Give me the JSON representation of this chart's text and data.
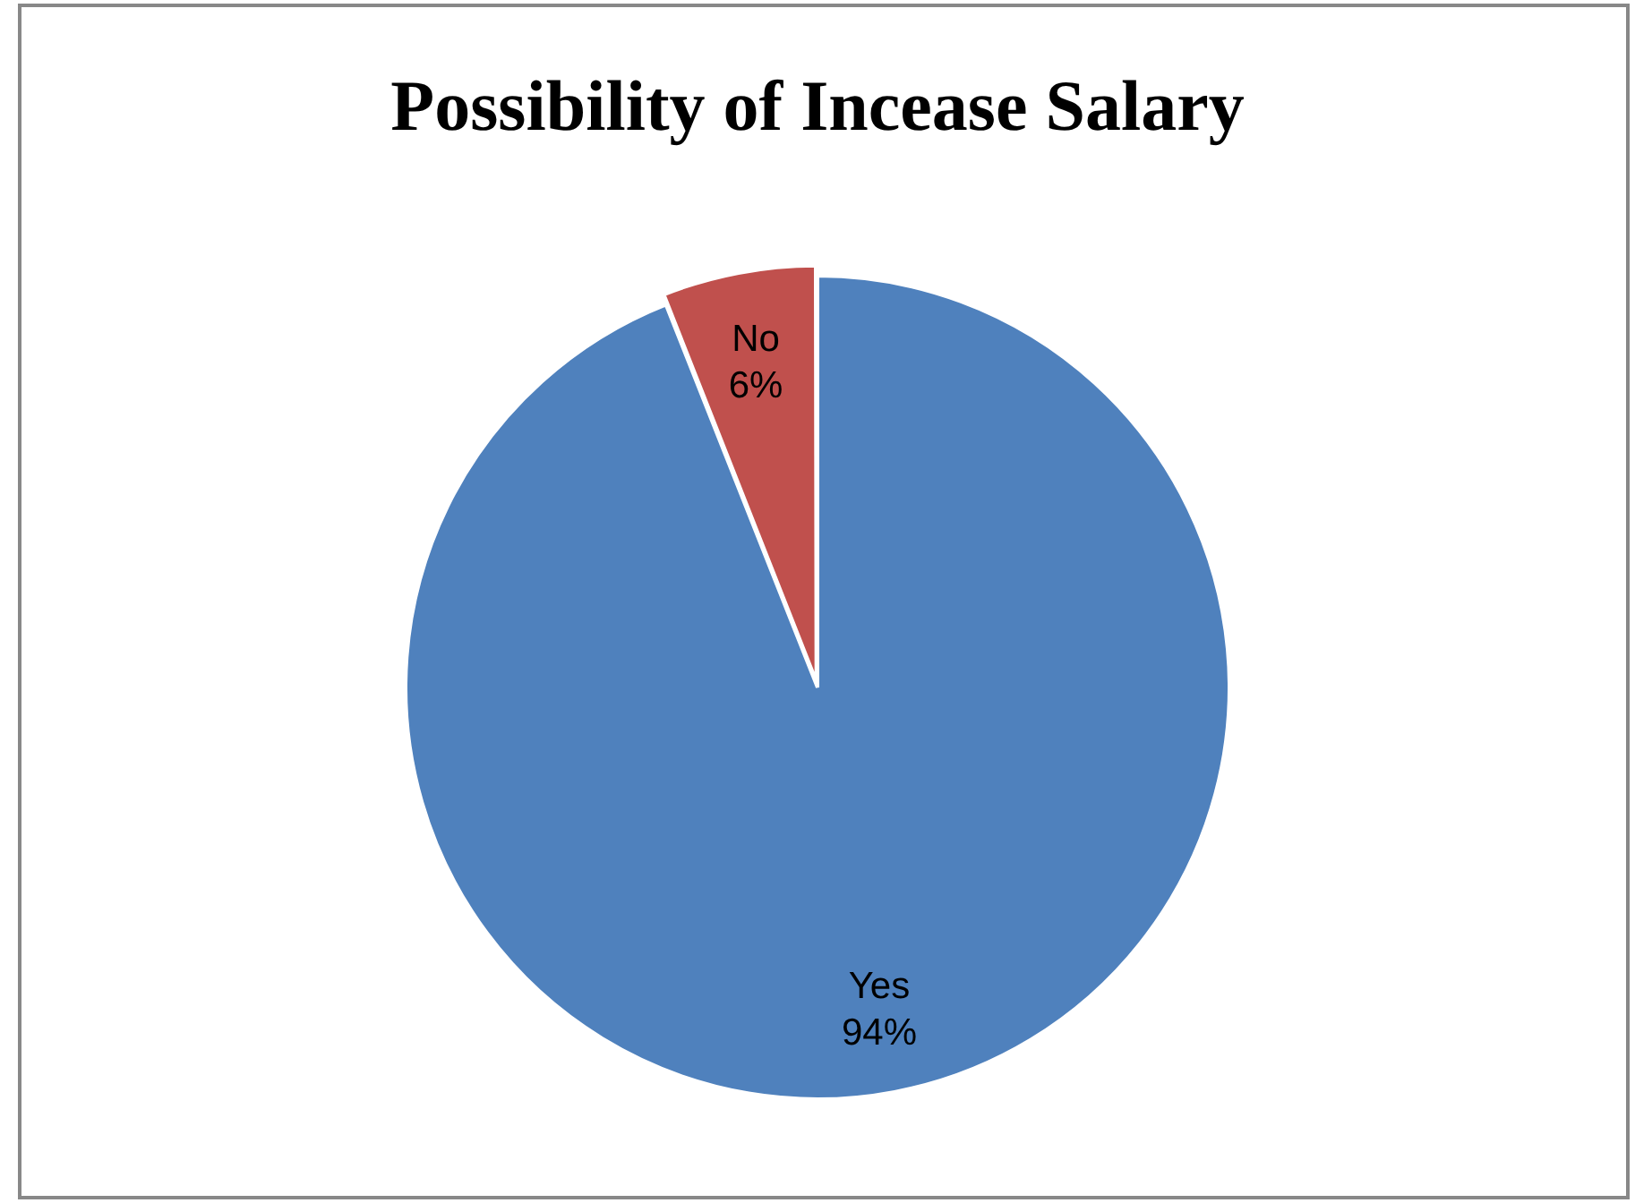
{
  "chart_data": {
    "type": "pie",
    "title": "Possibility of Incease Salary",
    "categories": [
      "Yes",
      "No"
    ],
    "values": [
      94,
      6
    ],
    "value_labels": [
      "94%",
      "6%"
    ],
    "colors": [
      "#4f81bd",
      "#c0504d"
    ],
    "legend": false
  }
}
